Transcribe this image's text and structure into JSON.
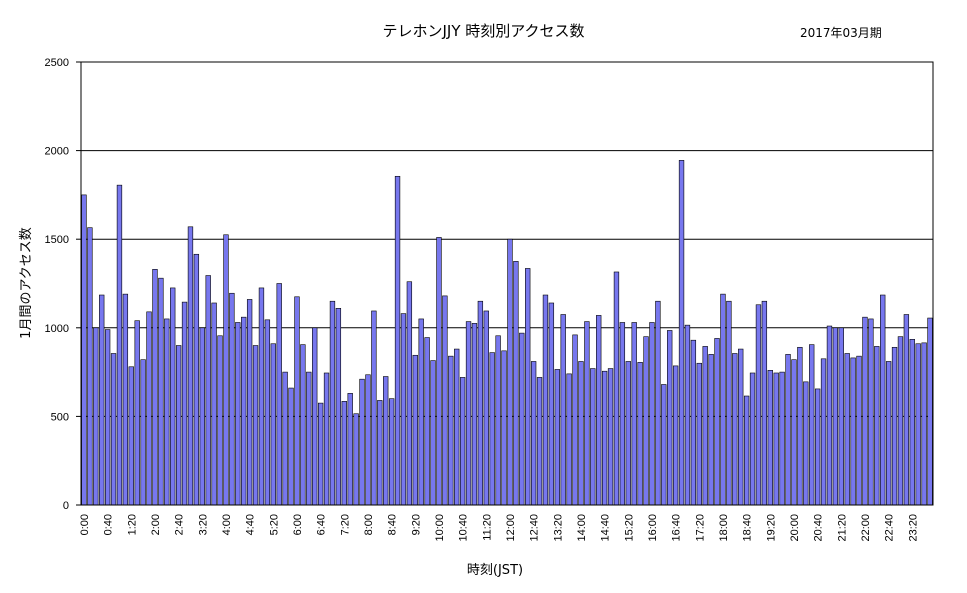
{
  "chart_data": {
    "type": "bar",
    "title": "テレホンJJY 時刻別アクセス数",
    "subtitle": "2017年03月期",
    "xlabel": "時刻(JST)",
    "ylabel": "1月間のアクセス数",
    "ylim": [
      0,
      2500
    ],
    "yticks": [
      0,
      500,
      1000,
      1500,
      2000,
      2500
    ],
    "grid": true,
    "bar_color": "#7777ee",
    "bar_stroke": "#000000",
    "x_tick_labels": [
      "0:00",
      "0:40",
      "1:20",
      "2:00",
      "2:40",
      "3:20",
      "4:00",
      "4:40",
      "5:20",
      "6:00",
      "6:40",
      "7:20",
      "8:00",
      "8:40",
      "9:20",
      "10:00",
      "10:40",
      "11:20",
      "12:00",
      "12:40",
      "13:20",
      "14:00",
      "14:40",
      "15:20",
      "16:00",
      "16:40",
      "17:20",
      "18:00",
      "18:40",
      "19:20",
      "20:00",
      "20:40",
      "21:20",
      "22:00",
      "22:40",
      "23:20"
    ],
    "categories": [
      "0:00",
      "0:10",
      "0:20",
      "0:30",
      "0:40",
      "0:50",
      "1:00",
      "1:10",
      "1:20",
      "1:30",
      "1:40",
      "1:50",
      "2:00",
      "2:10",
      "2:20",
      "2:30",
      "2:40",
      "2:50",
      "3:00",
      "3:10",
      "3:20",
      "3:30",
      "3:40",
      "3:50",
      "4:00",
      "4:10",
      "4:20",
      "4:30",
      "4:40",
      "4:50",
      "5:00",
      "5:10",
      "5:20",
      "5:30",
      "5:40",
      "5:50",
      "6:00",
      "6:10",
      "6:20",
      "6:30",
      "6:40",
      "6:50",
      "7:00",
      "7:10",
      "7:20",
      "7:30",
      "7:40",
      "7:50",
      "8:00",
      "8:10",
      "8:20",
      "8:30",
      "8:40",
      "8:50",
      "9:00",
      "9:10",
      "9:20",
      "9:30",
      "9:40",
      "9:50",
      "10:00",
      "10:10",
      "10:20",
      "10:30",
      "10:40",
      "10:50",
      "11:00",
      "11:10",
      "11:20",
      "11:30",
      "11:40",
      "11:50",
      "12:00",
      "12:10",
      "12:20",
      "12:30",
      "12:40",
      "12:50",
      "13:00",
      "13:10",
      "13:20",
      "13:30",
      "13:40",
      "13:50",
      "14:00",
      "14:10",
      "14:20",
      "14:30",
      "14:40",
      "14:50",
      "15:00",
      "15:10",
      "15:20",
      "15:30",
      "15:40",
      "15:50",
      "16:00",
      "16:10",
      "16:20",
      "16:30",
      "16:40",
      "16:50",
      "17:00",
      "17:10",
      "17:20",
      "17:30",
      "17:40",
      "17:50",
      "18:00",
      "18:10",
      "18:20",
      "18:30",
      "18:40",
      "18:50",
      "19:00",
      "19:10",
      "19:20",
      "19:30",
      "19:40",
      "19:50",
      "20:00",
      "20:10",
      "20:20",
      "20:30",
      "20:40",
      "20:50",
      "21:00",
      "21:10",
      "21:20",
      "21:30",
      "21:40",
      "21:50",
      "22:00",
      "22:10",
      "22:20",
      "22:30",
      "22:40",
      "22:50",
      "23:00",
      "23:10",
      "23:20",
      "23:30",
      "23:40",
      "23:50"
    ],
    "values": [
      1750,
      1565,
      1000,
      1185,
      990,
      855,
      1805,
      1190,
      780,
      1040,
      820,
      1090,
      1330,
      1280,
      1050,
      1225,
      900,
      1145,
      1570,
      1415,
      1000,
      1295,
      1140,
      955,
      1525,
      1195,
      1030,
      1060,
      1160,
      900,
      1225,
      1045,
      910,
      1250,
      750,
      660,
      1175,
      905,
      750,
      1000,
      575,
      745,
      1150,
      1110,
      585,
      630,
      515,
      710,
      735,
      1095,
      590,
      725,
      600,
      1855,
      1080,
      1260,
      845,
      1050,
      945,
      815,
      1510,
      1180,
      840,
      880,
      720,
      1035,
      1025,
      1150,
      1095,
      860,
      955,
      870,
      1500,
      1375,
      970,
      1335,
      810,
      720,
      1185,
      1140,
      765,
      1075,
      740,
      960,
      810,
      1035,
      770,
      1070,
      755,
      770,
      1315,
      1030,
      810,
      1030,
      805,
      950,
      1030,
      1150,
      680,
      985,
      785,
      1945,
      1015,
      930,
      800,
      895,
      850,
      940,
      1190,
      1150,
      855,
      880,
      615,
      745,
      1130,
      1150,
      760,
      745,
      750,
      850,
      820,
      890,
      695,
      905,
      655,
      825,
      1010,
      1000,
      1000,
      855,
      830,
      840,
      1060,
      1050,
      895,
      1185,
      810,
      890,
      950,
      1075,
      935,
      910,
      915,
      1055
    ]
  }
}
